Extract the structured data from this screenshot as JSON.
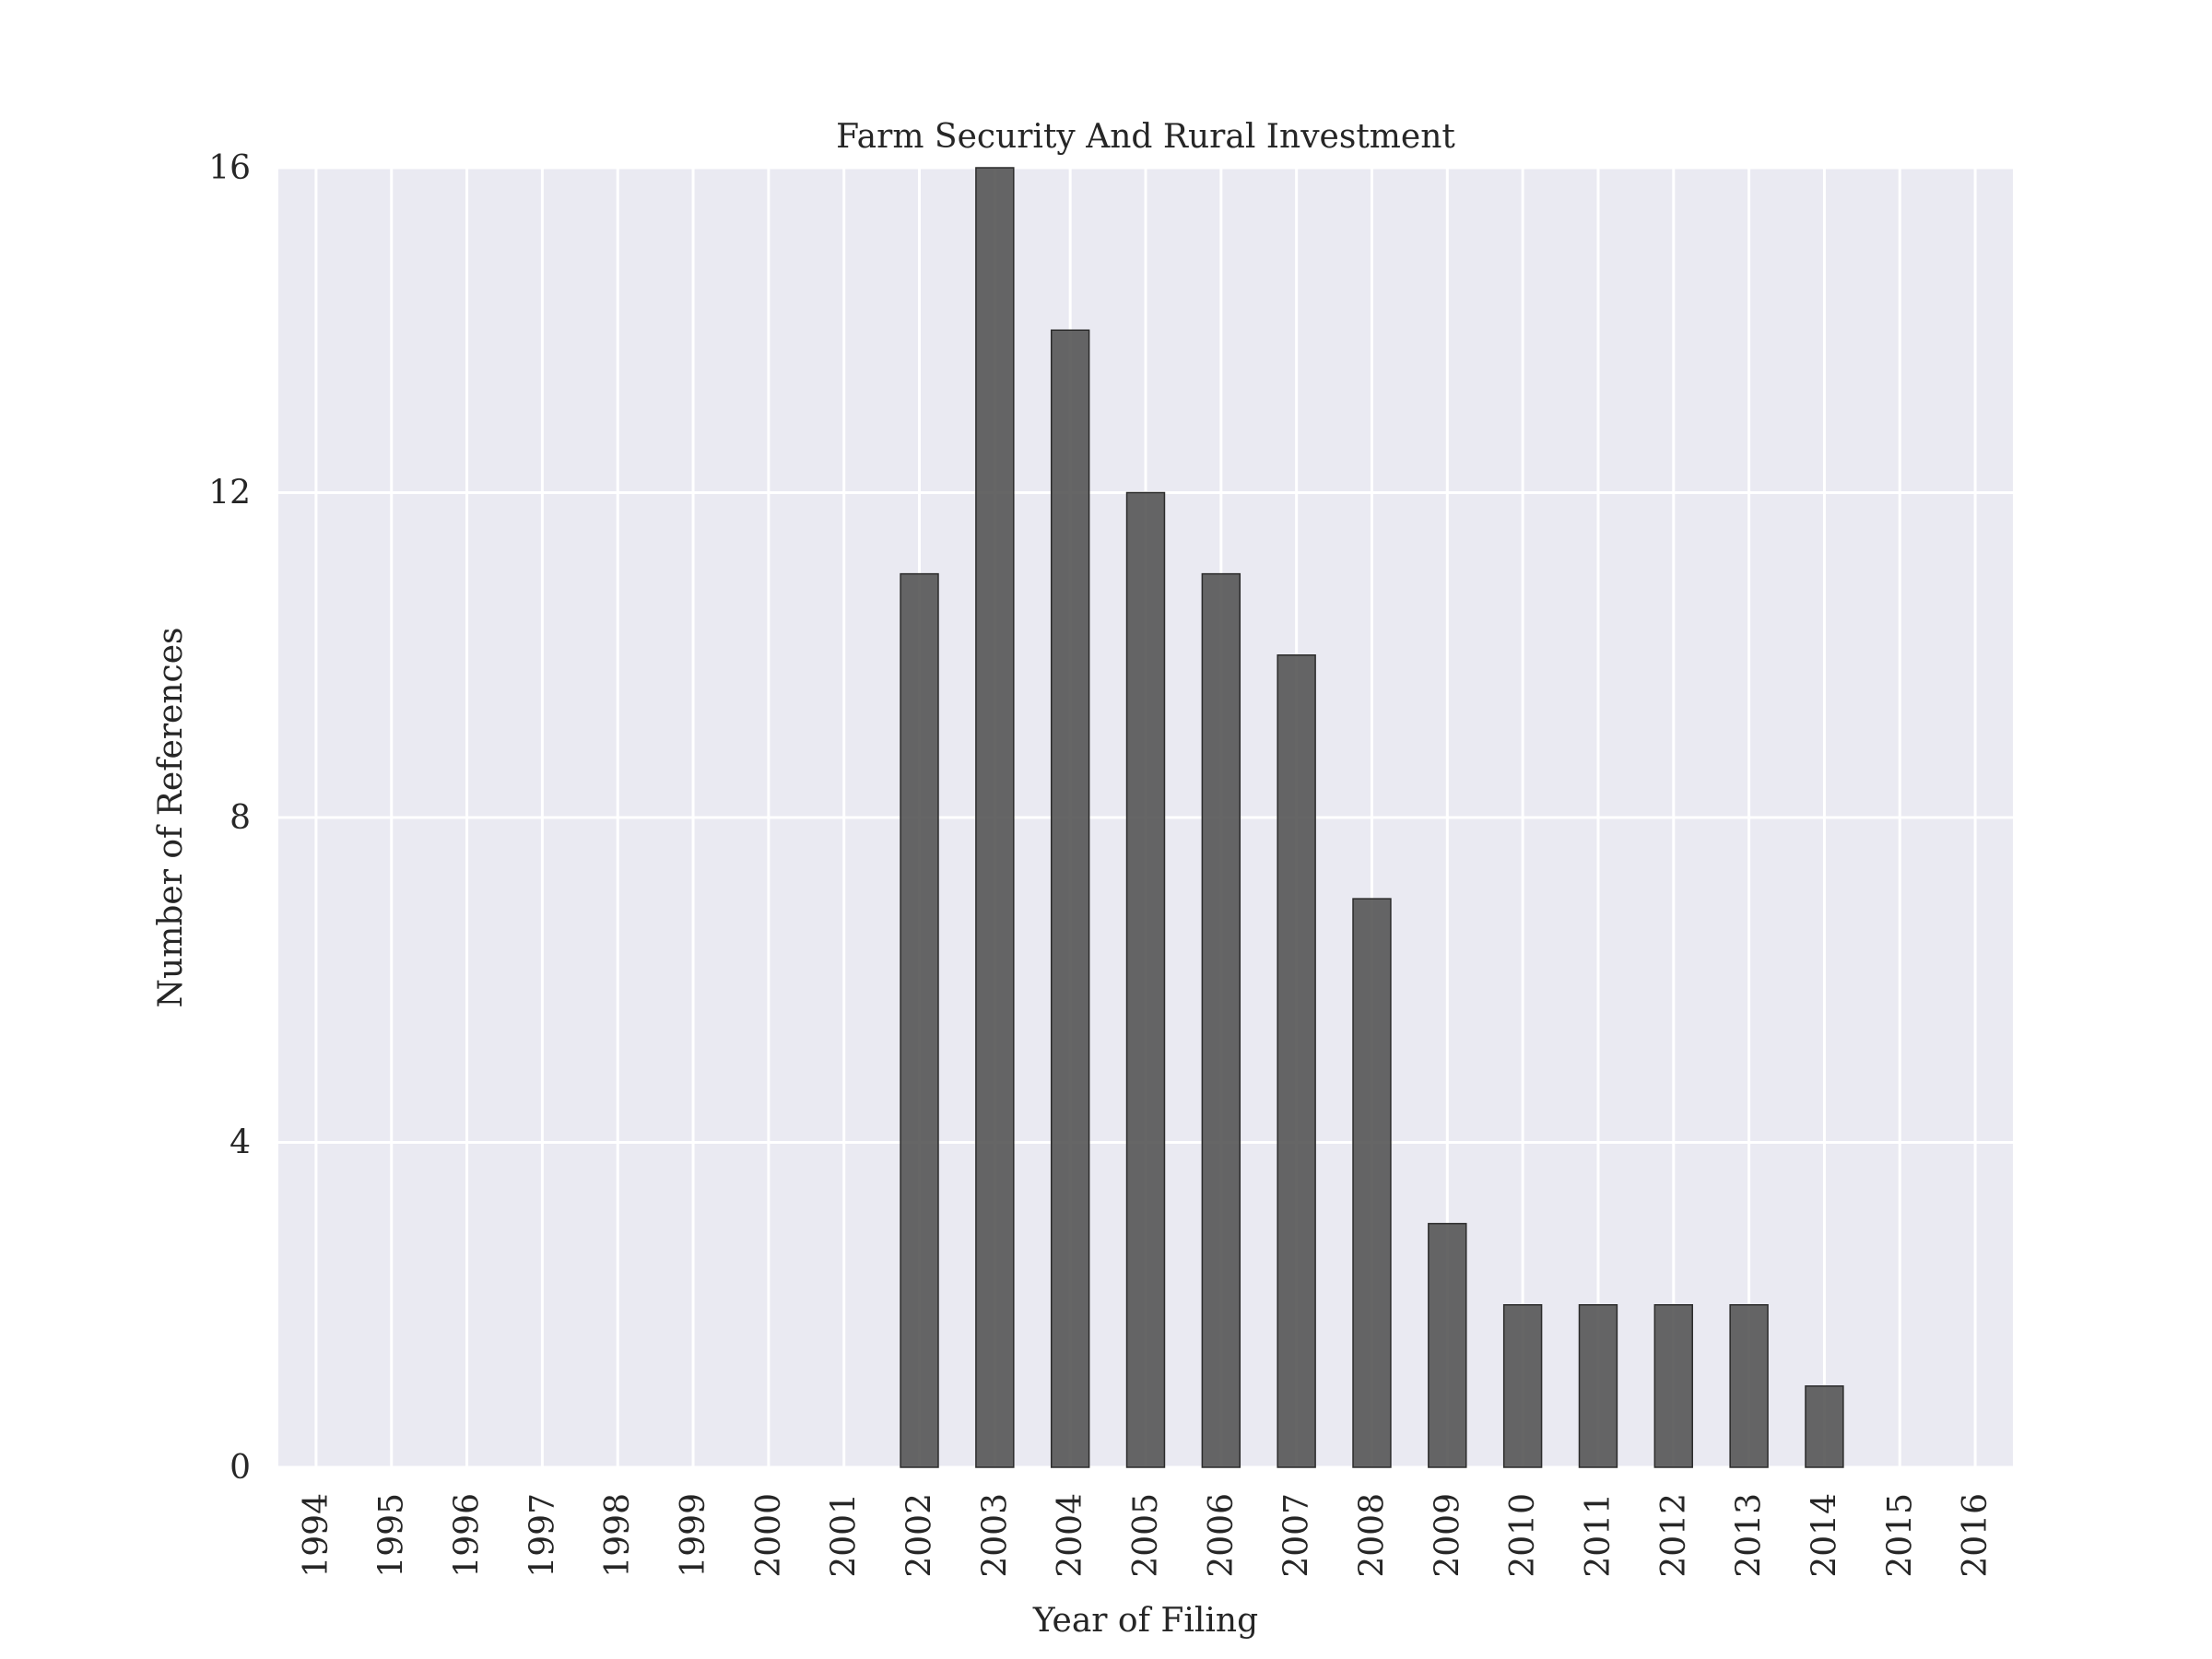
{
  "chart_data": {
    "type": "bar",
    "title": "Farm Security And Rural Investment",
    "xlabel": "Year of Filing",
    "ylabel": "Number of References",
    "categories": [
      "1994",
      "1995",
      "1996",
      "1997",
      "1998",
      "1999",
      "2000",
      "2001",
      "2002",
      "2003",
      "2004",
      "2005",
      "2006",
      "2007",
      "2008",
      "2009",
      "2010",
      "2011",
      "2012",
      "2013",
      "2014",
      "2015",
      "2016"
    ],
    "values": [
      0,
      0,
      0,
      0,
      0,
      0,
      0,
      0,
      11,
      16,
      14,
      12,
      11,
      10,
      7,
      3,
      2,
      2,
      2,
      2,
      1,
      0,
      0
    ],
    "ylim": [
      0,
      16
    ],
    "yticks": [
      0,
      4,
      8,
      12,
      16
    ],
    "grid": true,
    "colors": {
      "background": "#eaeaf2",
      "grid": "#ffffff",
      "bar": "#555555",
      "bar_edge": "#2b2b2b"
    }
  }
}
